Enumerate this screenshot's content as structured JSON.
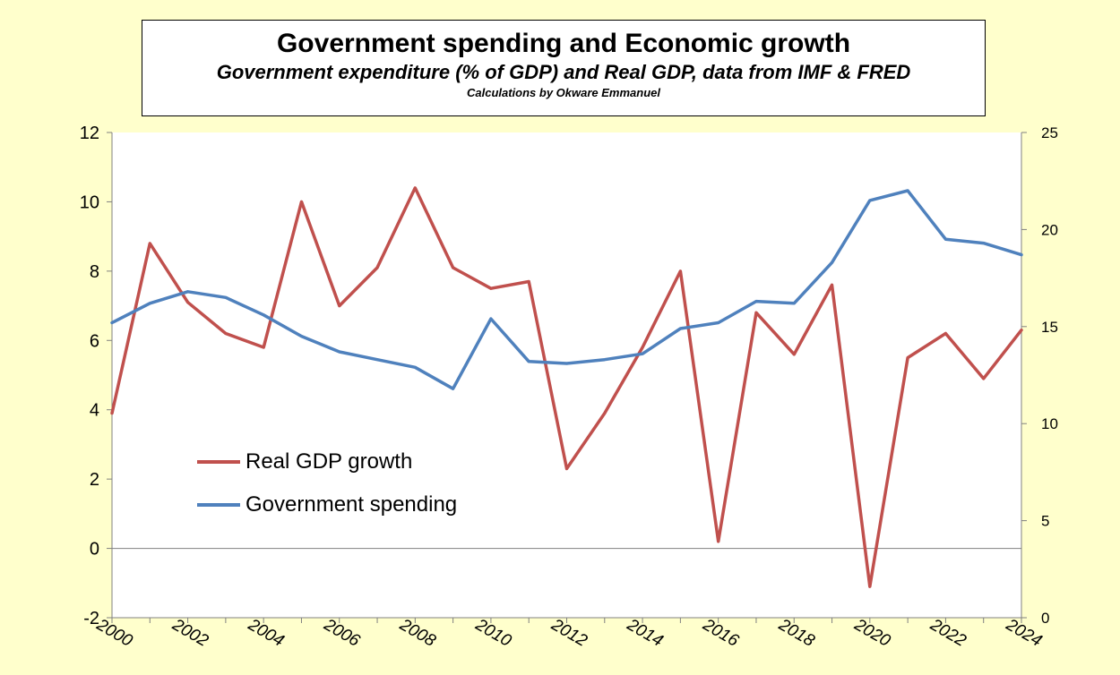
{
  "chart_data": {
    "type": "line",
    "title": "Government spending and Economic growth",
    "subtitle": "Government expenditure (% of GDP) and Real GDP, data from IMF & FRED",
    "note": "Calculations by Okware Emmanuel",
    "x": [
      2000,
      2001,
      2002,
      2003,
      2004,
      2005,
      2006,
      2007,
      2008,
      2009,
      2010,
      2011,
      2012,
      2013,
      2014,
      2015,
      2016,
      2017,
      2018,
      2019,
      2020,
      2021,
      2022,
      2023,
      2024
    ],
    "x_tick_labels": [
      "2000",
      "2002",
      "2004",
      "2006",
      "2008",
      "2010",
      "2012",
      "2014",
      "2016",
      "2018",
      "2020",
      "2022",
      "2024"
    ],
    "y_left_range": [
      -2,
      12
    ],
    "y_left_ticks": [
      "12",
      "10",
      "8",
      "6",
      "4",
      "2",
      "0",
      "-2"
    ],
    "y_right_range": [
      0,
      25
    ],
    "y_right_ticks": [
      "25",
      "20",
      "15",
      "10",
      "5",
      "0"
    ],
    "series": [
      {
        "name": "Real GDP growth",
        "axis": "left",
        "color": "#c0504d",
        "values": [
          3.9,
          8.8,
          7.1,
          6.2,
          5.8,
          10.0,
          7.0,
          8.1,
          10.4,
          8.1,
          7.5,
          7.7,
          2.3,
          3.9,
          5.8,
          8.0,
          0.2,
          6.8,
          5.6,
          7.6,
          -1.1,
          5.5,
          6.2,
          4.9,
          6.3
        ]
      },
      {
        "name": "Government spending",
        "axis": "right",
        "color": "#4f81bd",
        "values": [
          15.2,
          16.2,
          16.8,
          16.5,
          15.6,
          14.5,
          13.7,
          13.3,
          12.9,
          11.8,
          15.4,
          13.2,
          13.1,
          13.3,
          13.6,
          14.9,
          15.2,
          16.3,
          16.2,
          18.3,
          21.5,
          22.0,
          19.5,
          19.3,
          18.7
        ]
      }
    ],
    "grid": false,
    "legend_position": "bottom-left-inside"
  }
}
